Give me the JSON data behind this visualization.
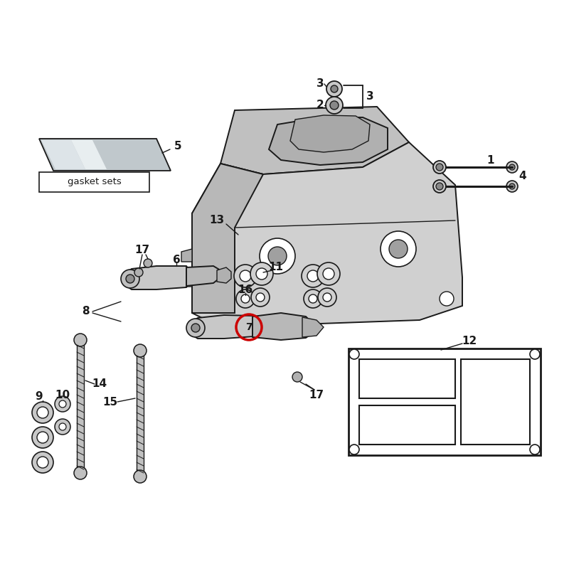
{
  "bg_color": "#ffffff",
  "lc": "#1a1a1a",
  "fill_body": "#c8c8c8",
  "fill_light": "#d8d8d8",
  "fill_dark": "#a8a8a8",
  "fill_white": "#ffffff",
  "red": "#cc0000",
  "gasket_text": "gasket sets",
  "label_fs": 10,
  "bold_fs": 11
}
